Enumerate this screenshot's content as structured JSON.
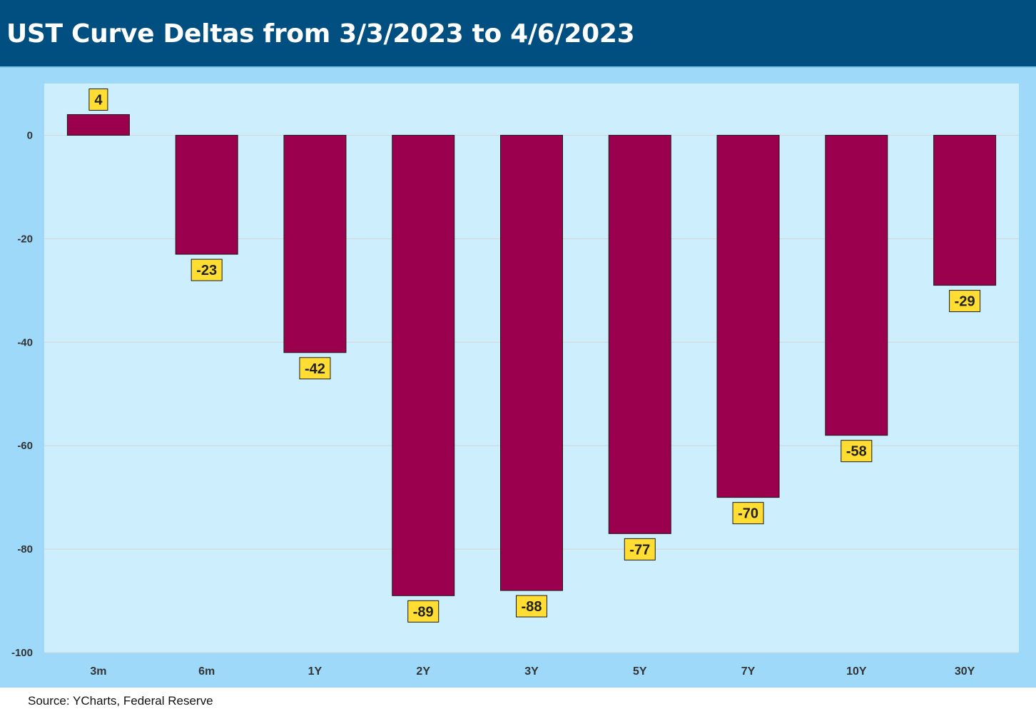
{
  "header": {
    "title": "UST Curve Deltas from 3/3/2023 to 4/6/2023"
  },
  "source": "Source: YCharts, Federal Reserve",
  "colors": {
    "header_bg": "#004f80",
    "frame_bg": "#9fd9f9",
    "plot_bg": "#cdeefd",
    "bar_fill": "#9b004f",
    "label_bg": "#ffdd33"
  },
  "chart_data": {
    "type": "bar",
    "title": "UST Curve Deltas from 3/3/2023 to 4/6/2023",
    "xlabel": "",
    "ylabel": "",
    "categories": [
      "3m",
      "6m",
      "1Y",
      "2Y",
      "3Y",
      "5Y",
      "7Y",
      "10Y",
      "30Y"
    ],
    "values": [
      4,
      -23,
      -42,
      -89,
      -88,
      -77,
      -70,
      -58,
      -29
    ],
    "ylim": [
      -100,
      10
    ],
    "yticks": [
      0,
      -20,
      -40,
      -60,
      -80,
      -100
    ],
    "grid": true,
    "legend": "none",
    "data_labels": true
  }
}
